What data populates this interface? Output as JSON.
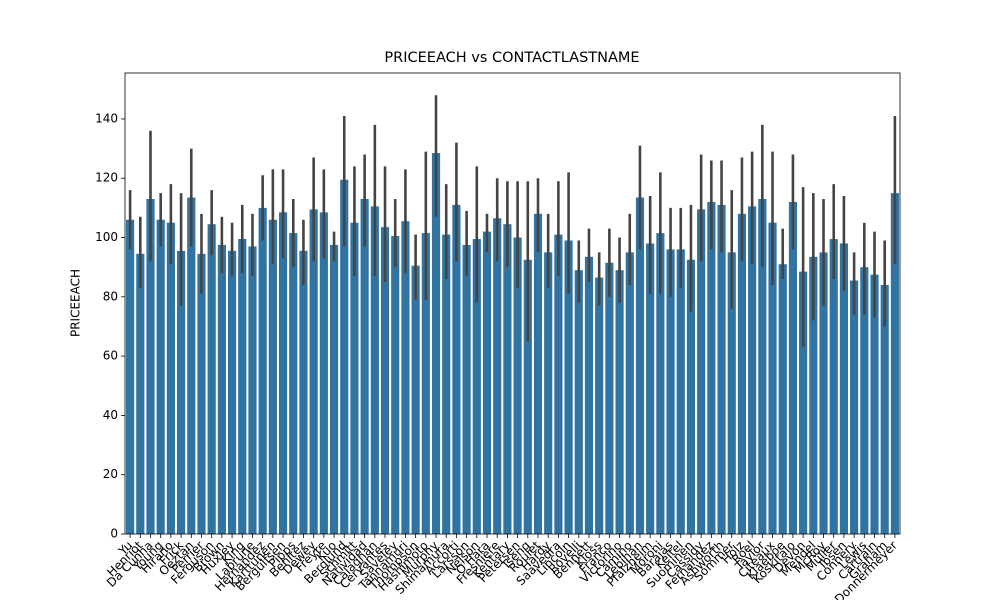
{
  "chart_data": {
    "type": "bar",
    "title": "PRICEEACH vs CONTACTLASTNAME",
    "ylabel": "PRICEEACH",
    "categories": [
      "Yu",
      "Henriot",
      "Da Cunha",
      "Young",
      "Hirano",
      "Frick",
      "Oeztan",
      "Perrier",
      "Ferguson",
      "Brown",
      "Huxley",
      "King",
      "Labrune",
      "Hernandez",
      "Karttunen",
      "Bergulfsen",
      "Pipps",
      "Benitez",
      "Dewey",
      "Freyre",
      "Kuo",
      "Berglund",
      "Schmitt",
      "Natividad",
      "Calaghan",
      "Cervantes",
      "Saveley",
      "Tannamuri",
      "Thompson",
      "Hashimoto",
      "Murphy",
      "Shimamura",
      "Accorti",
      "Larsson",
      "Nelson",
      "O'Hara",
      "Fresnière",
      "Kentary",
      "Petersen",
      "Tseng",
      "Roulet",
      "Hardy",
      "Saavedra",
      "Lincoln",
      "Rovelli",
      "Bennett",
      "Kloss",
      "Franco",
      "Victorino",
      "Camino",
      "Lebihan",
      "Pfalzheim",
      "Moroni",
      "Barajas",
      "Keitel",
      "Suominen",
      "Cassidy",
      "Fernandez",
      "Ashworth",
      "Sommer",
      "Holz",
      "Roel",
      "Taylor",
      "Citeaux",
      "Klaeboe",
      "Koskitalo",
      "Devon",
      "Mendel",
      "McRoy",
      "Müller",
      "Ibsen",
      "Connery",
      "Lewis",
      "Cartrain",
      "Graham",
      "Donnermeyer"
    ],
    "values": [
      106,
      94.5,
      113,
      106,
      105,
      95.5,
      113.5,
      94.5,
      104.5,
      97.5,
      95.5,
      99.5,
      97,
      110,
      106,
      108.5,
      101.5,
      95.5,
      109.5,
      108.5,
      97.5,
      119.5,
      105,
      113,
      110.5,
      103.5,
      100.5,
      105.5,
      90.5,
      101.5,
      128.5,
      101,
      111,
      97.5,
      99.5,
      102,
      106.5,
      104.5,
      100,
      92.5,
      108,
      95,
      101,
      99,
      89,
      93.5,
      86.5,
      91.5,
      89,
      95,
      113.5,
      98,
      101.5,
      96,
      96,
      92.5,
      109.5,
      112,
      111,
      95,
      108,
      110.5,
      113,
      105,
      91,
      112,
      88.5,
      93.5,
      95,
      99.5,
      98,
      85.5,
      90,
      87.5,
      84,
      115
    ],
    "ci_low": [
      96,
      83,
      92,
      97,
      91,
      77,
      97,
      81,
      94,
      88,
      87,
      88,
      87,
      99,
      91,
      93,
      90,
      84,
      92,
      93,
      92,
      97,
      87,
      97,
      87,
      85,
      90,
      88,
      79,
      79,
      107,
      86,
      92,
      87,
      78,
      95,
      92,
      90,
      83,
      65,
      95,
      83,
      87,
      81,
      78,
      85,
      77,
      80,
      78,
      84,
      96,
      81,
      81,
      80,
      83,
      75,
      92,
      96,
      95,
      76,
      92,
      91,
      90,
      84,
      86,
      96,
      63,
      72,
      77,
      86,
      82,
      74,
      74,
      73,
      70,
      91
    ],
    "ci_high": [
      116,
      107,
      136,
      115,
      118,
      115,
      130,
      108,
      116,
      107,
      105,
      111,
      108,
      121,
      123,
      123,
      113,
      106,
      127,
      123,
      102,
      141,
      124,
      128,
      138,
      124,
      113,
      123,
      101,
      129,
      148,
      118,
      132,
      109,
      124,
      108,
      120,
      119,
      119,
      119,
      120,
      108,
      119,
      122,
      99,
      103,
      95,
      103,
      100,
      108,
      131,
      114,
      122,
      110,
      110,
      111,
      128,
      126,
      126,
      116,
      127,
      129,
      138,
      129,
      103,
      128,
      117,
      115,
      113,
      118,
      114,
      95,
      105,
      102,
      99,
      141
    ],
    "color": "#3274a1",
    "error_color": "#444444",
    "ylim": [
      0,
      155.5
    ],
    "yticks": [
      0,
      20,
      40,
      60,
      80,
      100,
      120,
      140
    ]
  }
}
